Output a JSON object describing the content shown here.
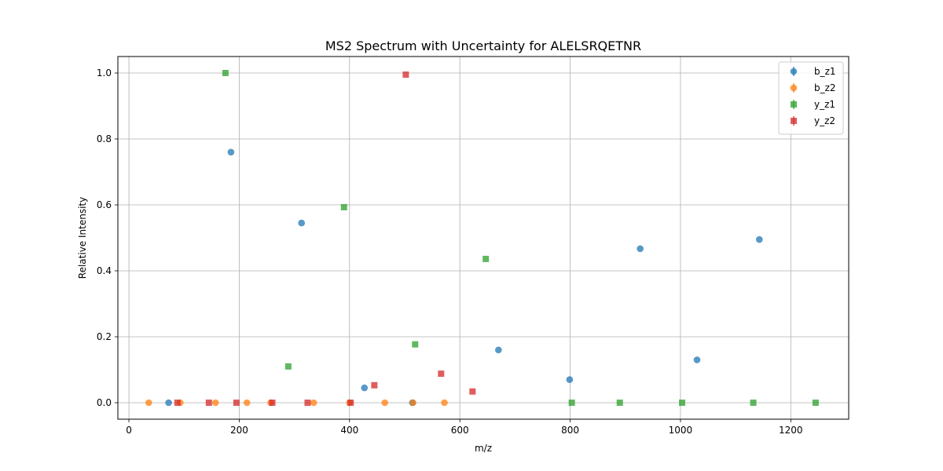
{
  "chart_data": {
    "type": "scatter",
    "title": "MS2 Spectrum with Uncertainty for ALELSRQETNR",
    "xlabel": "m/z",
    "ylabel": "Relative Intensity",
    "xlim": [
      -20,
      1305
    ],
    "ylim": [
      -0.05,
      1.05
    ],
    "xticks": [
      0,
      200,
      400,
      600,
      800,
      1000,
      1200
    ],
    "yticks": [
      0.0,
      0.2,
      0.4,
      0.6,
      0.8,
      1.0
    ],
    "ytick_labels": [
      "0.0",
      "0.2",
      "0.4",
      "0.6",
      "0.8",
      "1.0"
    ],
    "grid": true,
    "legend_position": "top-right",
    "series": [
      {
        "name": "b_z1",
        "marker": "circle",
        "color": "#1f77b4",
        "x": [
          72,
          185,
          313,
          427,
          514,
          670,
          799,
          927,
          1030,
          1143
        ],
        "y": [
          0.0,
          0.76,
          0.545,
          0.045,
          0.0,
          0.16,
          0.07,
          0.467,
          0.13,
          0.495
        ]
      },
      {
        "name": "b_z2",
        "marker": "circle",
        "color": "#ff7f0e",
        "x": [
          36,
          93,
          157,
          214,
          257,
          335,
          400,
          464,
          515,
          572
        ],
        "y": [
          0.0,
          0.0,
          0.0,
          0.0,
          0.0,
          0.0,
          0.0,
          0.0,
          0.0,
          0.0
        ]
      },
      {
        "name": "y_z1",
        "marker": "square",
        "color": "#2ca02c",
        "x": [
          175,
          289,
          390,
          519,
          647,
          803,
          890,
          1003,
          1132,
          1245
        ],
        "y": [
          1.0,
          0.11,
          0.593,
          0.177,
          0.436,
          0.0,
          0.0,
          0.0,
          0.0,
          0.0
        ]
      },
      {
        "name": "y_z2",
        "marker": "square",
        "color": "#d62728",
        "x": [
          88,
          145,
          195,
          260,
          324,
          402,
          445,
          502,
          566,
          623
        ],
        "y": [
          0.0,
          0.0,
          0.0,
          0.0,
          0.0,
          0.0,
          0.053,
          0.995,
          0.088,
          0.034
        ]
      }
    ]
  }
}
